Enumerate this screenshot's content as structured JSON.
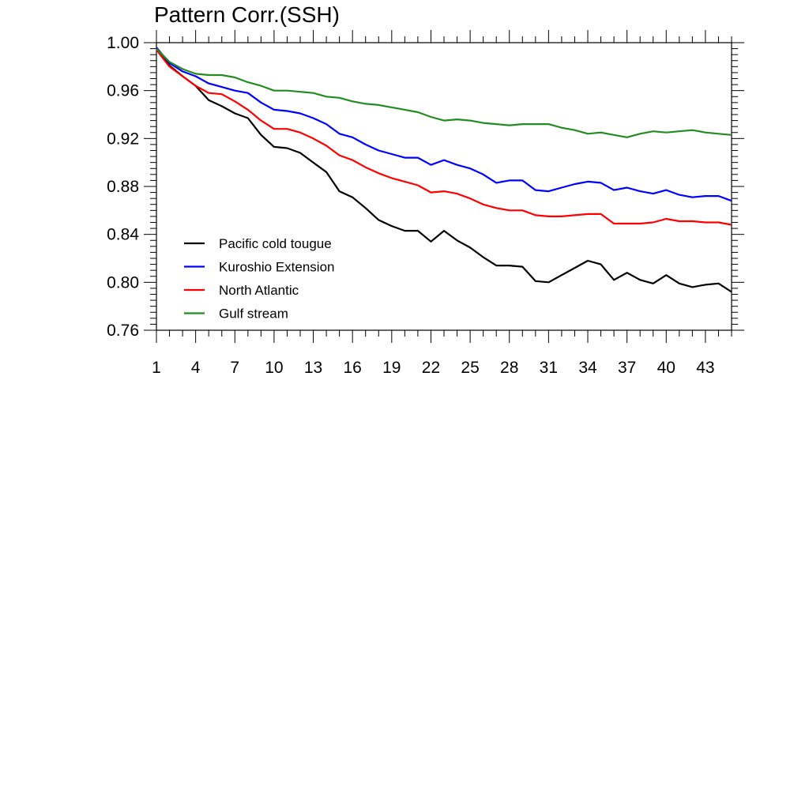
{
  "chart_data": {
    "type": "line",
    "title": "Pattern Corr.(SSH)",
    "xlabel": "",
    "ylabel": "",
    "xlim": [
      1,
      45
    ],
    "ylim": [
      0.76,
      1.0
    ],
    "x_ticks": [
      1,
      4,
      7,
      10,
      13,
      16,
      19,
      22,
      25,
      28,
      31,
      34,
      37,
      40,
      43
    ],
    "y_ticks": [
      "0.76",
      "0.80",
      "0.84",
      "0.88",
      "0.92",
      "0.96",
      "1.00"
    ],
    "grid": false,
    "legend_position": "lower-left",
    "x": [
      1,
      2,
      3,
      4,
      5,
      6,
      7,
      8,
      9,
      10,
      11,
      12,
      13,
      14,
      15,
      16,
      17,
      18,
      19,
      20,
      21,
      22,
      23,
      24,
      25,
      26,
      27,
      28,
      29,
      30,
      31,
      32,
      33,
      34,
      35,
      36,
      37,
      38,
      39,
      40,
      41,
      42,
      43,
      44,
      45
    ],
    "series": [
      {
        "name": "Pacific cold tougue",
        "color": "#000000",
        "values": [
          0.995,
          0.981,
          0.972,
          0.964,
          0.952,
          0.947,
          0.941,
          0.937,
          0.923,
          0.913,
          0.912,
          0.908,
          0.9,
          0.892,
          0.876,
          0.871,
          0.862,
          0.852,
          0.847,
          0.843,
          0.843,
          0.834,
          0.843,
          0.835,
          0.829,
          0.821,
          0.814,
          0.814,
          0.813,
          0.801,
          0.8,
          0.806,
          0.812,
          0.818,
          0.815,
          0.802,
          0.808,
          0.802,
          0.799,
          0.806,
          0.799,
          0.796,
          0.798,
          0.799,
          0.792
        ]
      },
      {
        "name": "Kuroshio Extension",
        "color": "#0000ff",
        "values": [
          0.996,
          0.983,
          0.976,
          0.972,
          0.966,
          0.963,
          0.96,
          0.958,
          0.95,
          0.944,
          0.943,
          0.941,
          0.937,
          0.932,
          0.924,
          0.921,
          0.915,
          0.91,
          0.907,
          0.904,
          0.904,
          0.898,
          0.902,
          0.898,
          0.895,
          0.89,
          0.883,
          0.885,
          0.885,
          0.877,
          0.876,
          0.879,
          0.882,
          0.884,
          0.883,
          0.877,
          0.879,
          0.876,
          0.874,
          0.877,
          0.873,
          0.871,
          0.872,
          0.872,
          0.868
        ]
      },
      {
        "name": "North Atlantic",
        "color": "#ff0000",
        "values": [
          0.994,
          0.98,
          0.972,
          0.964,
          0.958,
          0.957,
          0.951,
          0.944,
          0.935,
          0.928,
          0.928,
          0.925,
          0.92,
          0.914,
          0.906,
          0.902,
          0.896,
          0.891,
          0.887,
          0.884,
          0.881,
          0.875,
          0.876,
          0.874,
          0.87,
          0.865,
          0.862,
          0.86,
          0.86,
          0.856,
          0.855,
          0.855,
          0.856,
          0.857,
          0.857,
          0.849,
          0.849,
          0.849,
          0.85,
          0.853,
          0.851,
          0.851,
          0.85,
          0.85,
          0.848
        ]
      },
      {
        "name": "Gulf stream",
        "color": "#228b22",
        "values": [
          0.995,
          0.984,
          0.978,
          0.974,
          0.973,
          0.973,
          0.971,
          0.967,
          0.964,
          0.96,
          0.96,
          0.959,
          0.958,
          0.955,
          0.954,
          0.951,
          0.949,
          0.948,
          0.946,
          0.944,
          0.942,
          0.938,
          0.935,
          0.936,
          0.935,
          0.933,
          0.932,
          0.931,
          0.932,
          0.932,
          0.932,
          0.929,
          0.927,
          0.924,
          0.925,
          0.923,
          0.921,
          0.924,
          0.926,
          0.925,
          0.926,
          0.927,
          0.925,
          0.924,
          0.923
        ]
      }
    ]
  }
}
